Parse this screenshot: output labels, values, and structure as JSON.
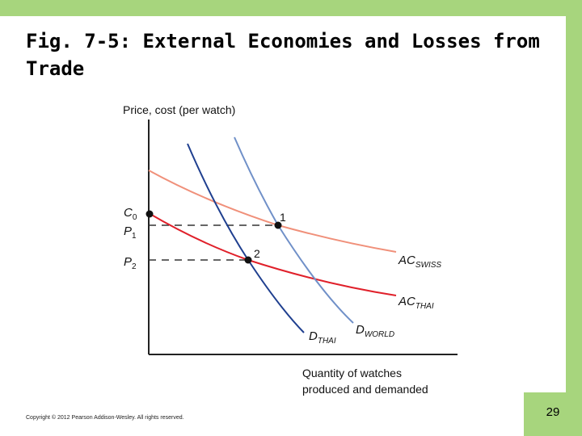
{
  "slide": {
    "title": "Fig. 7-5: External Economies and Losses from Trade",
    "copyright": "Copyright © 2012 Pearson Addison-Wesley. All rights reserved.",
    "page_number": "29",
    "accent_color": "#a7d57d"
  },
  "diagram": {
    "y_axis_label": "Price, cost (per watch)",
    "x_axis_label_line1": "Quantity of watches",
    "x_axis_label_line2": "produced and demanded",
    "c0_label": "C",
    "c0_sub": "0",
    "p1_label": "P",
    "p1_sub": "1",
    "p2_label": "P",
    "p2_sub": "2",
    "point1_label": "1",
    "point2_label": "2",
    "ac_swiss_main": "AC",
    "ac_swiss_sub": "SWISS",
    "ac_thai_main": "AC",
    "ac_thai_sub": "THAI",
    "d_thai_main": "D",
    "d_thai_sub": "THAI",
    "d_world_main": "D",
    "d_world_sub": "WORLD",
    "colors": {
      "ac_swiss": "#f0907a",
      "ac_thai": "#e0202a",
      "d_thai": "#1f3f8f",
      "d_world": "#7090c8",
      "axis": "#222222"
    }
  }
}
